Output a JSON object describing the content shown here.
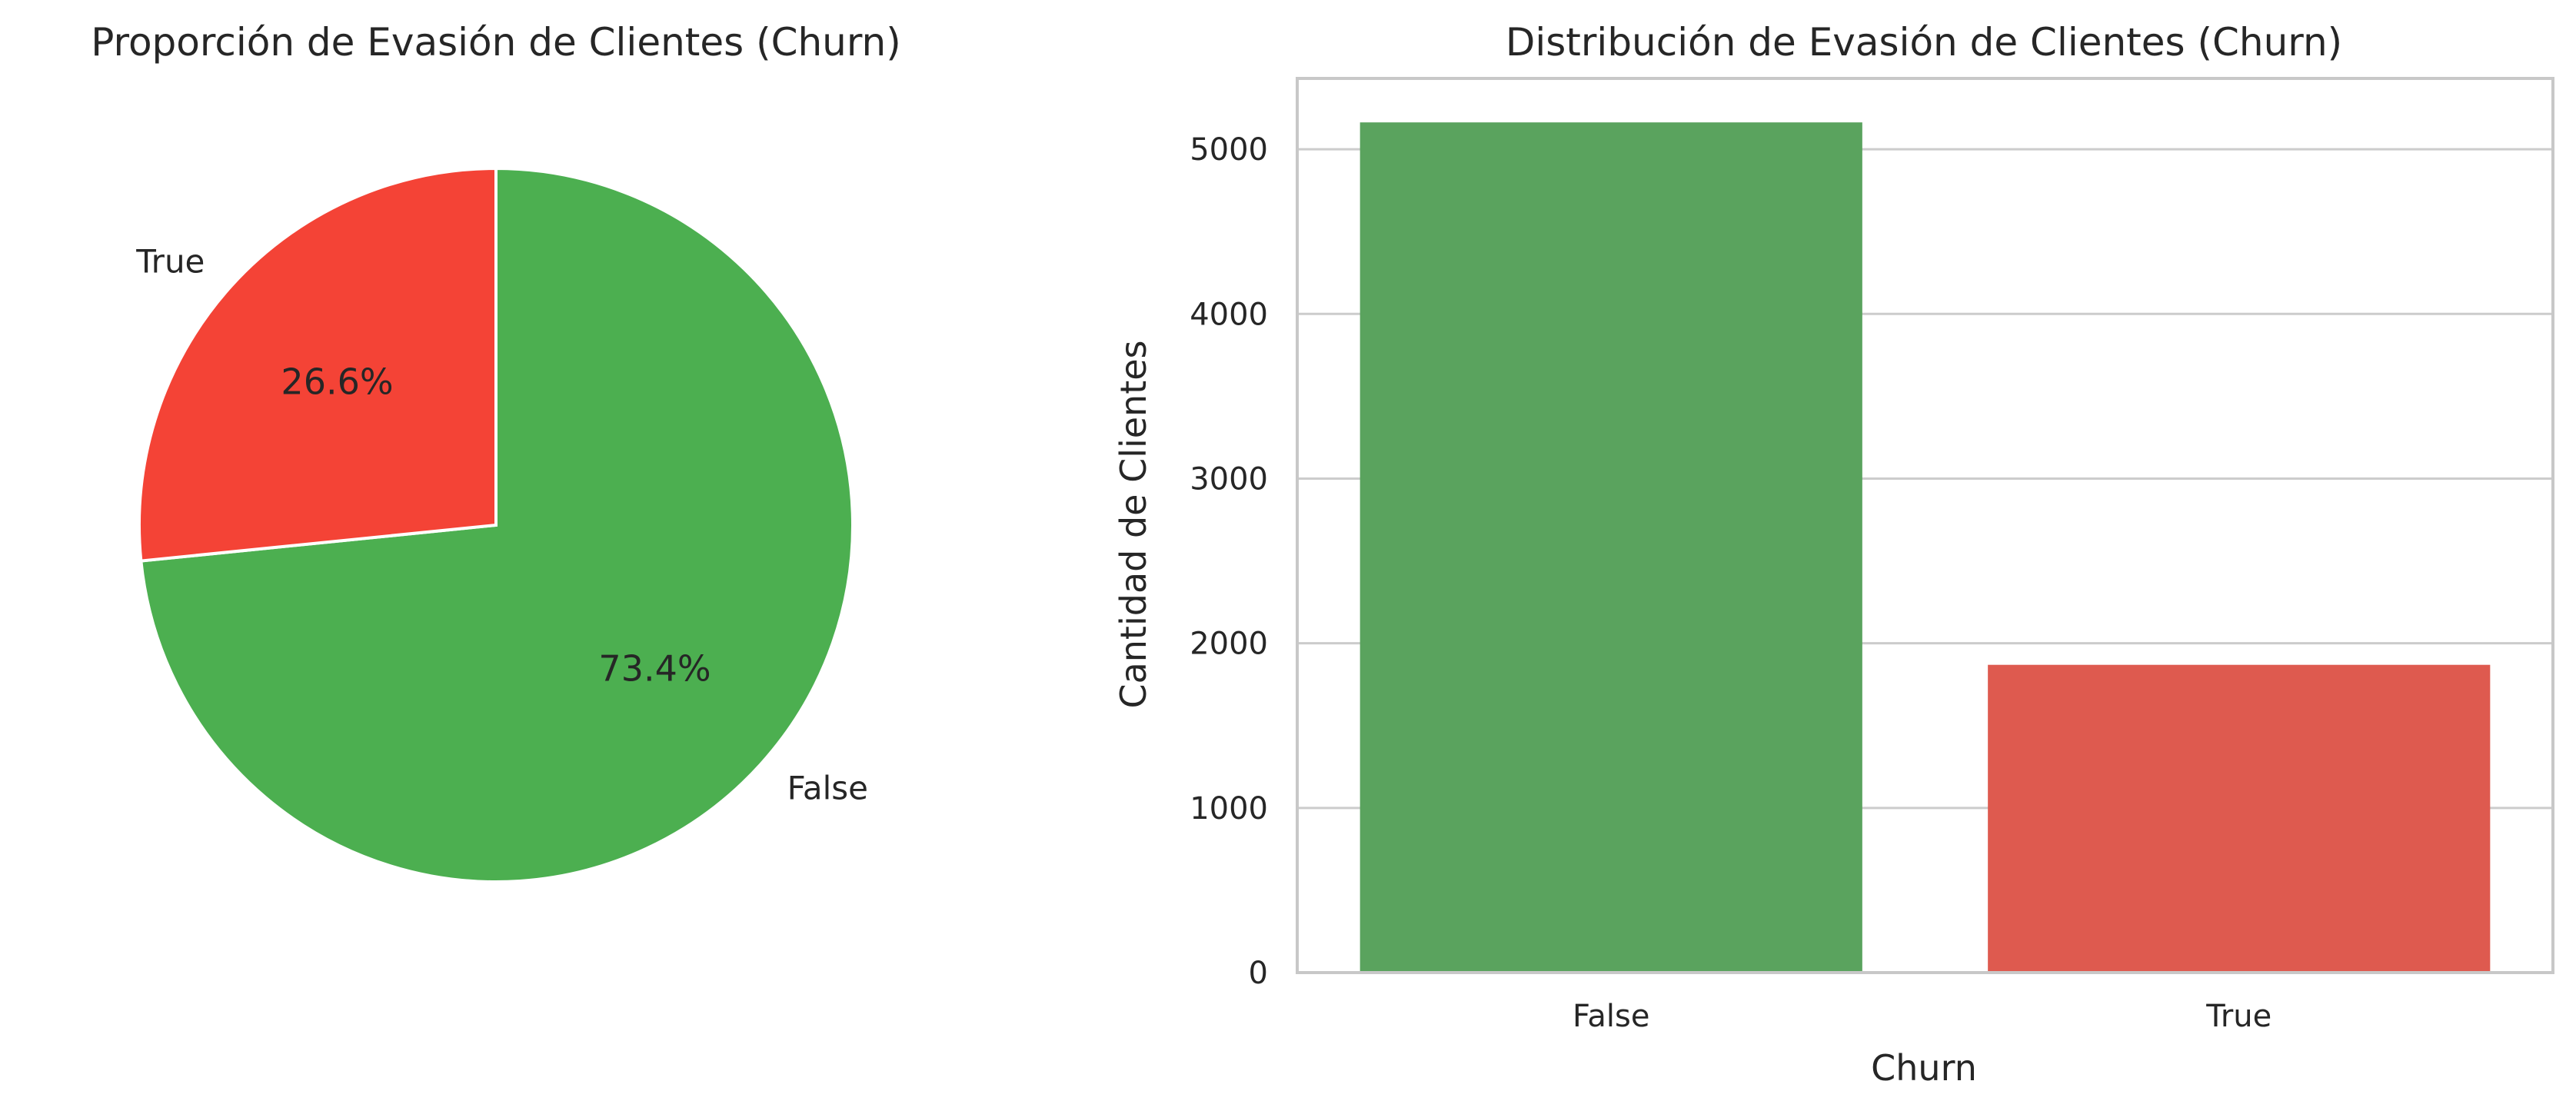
{
  "chart_data": [
    {
      "type": "pie",
      "title": "Proporción de Evasión de Clientes (Churn)",
      "labels": [
        "False",
        "True"
      ],
      "values": [
        73.4,
        26.6
      ],
      "value_labels": [
        "73.4%",
        "26.6%"
      ],
      "colors": [
        "#4caf50",
        "#f44336"
      ],
      "start_angle": 90,
      "direction": "clockwise"
    },
    {
      "type": "bar",
      "title": "Distribución de Evasión de Clientes (Churn)",
      "xlabel": "Churn",
      "ylabel": "Cantidad de Clientes",
      "categories": [
        "False",
        "True"
      ],
      "values": [
        5163,
        1869
      ],
      "colors": [
        "#5aa35e",
        "#de5a4f"
      ],
      "ylim": [
        0,
        5430
      ],
      "yticks": [
        0,
        1000,
        2000,
        3000,
        4000,
        5000
      ],
      "grid": "horizontal",
      "legend": "none"
    }
  ]
}
